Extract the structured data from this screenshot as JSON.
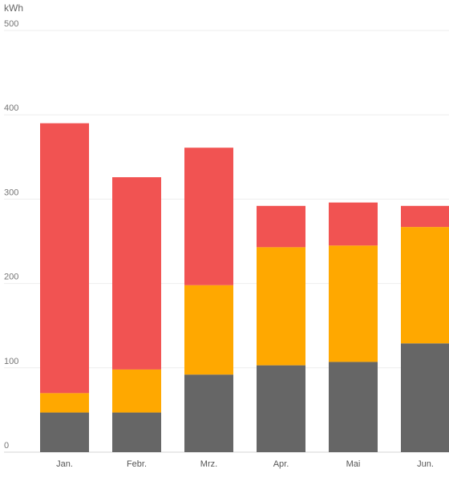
{
  "chart_data": {
    "type": "bar",
    "stacked": true,
    "unit": "kWh",
    "categories": [
      "Jan.",
      "Febr.",
      "Mrz.",
      "Apr.",
      "Mai",
      "Jun."
    ],
    "series": [
      {
        "color": "#666666",
        "values": [
          47,
          47,
          92,
          103,
          107,
          129
        ]
      },
      {
        "color": "#ffa800",
        "values": [
          23,
          51,
          106,
          140,
          138,
          138
        ]
      },
      {
        "color": "#f15352",
        "values": [
          320,
          228,
          163,
          49,
          51,
          25
        ]
      }
    ],
    "ylim": [
      0,
      500
    ],
    "yticks": [
      0,
      100,
      200,
      300,
      400,
      500
    ],
    "grid": true,
    "legend": "none"
  }
}
